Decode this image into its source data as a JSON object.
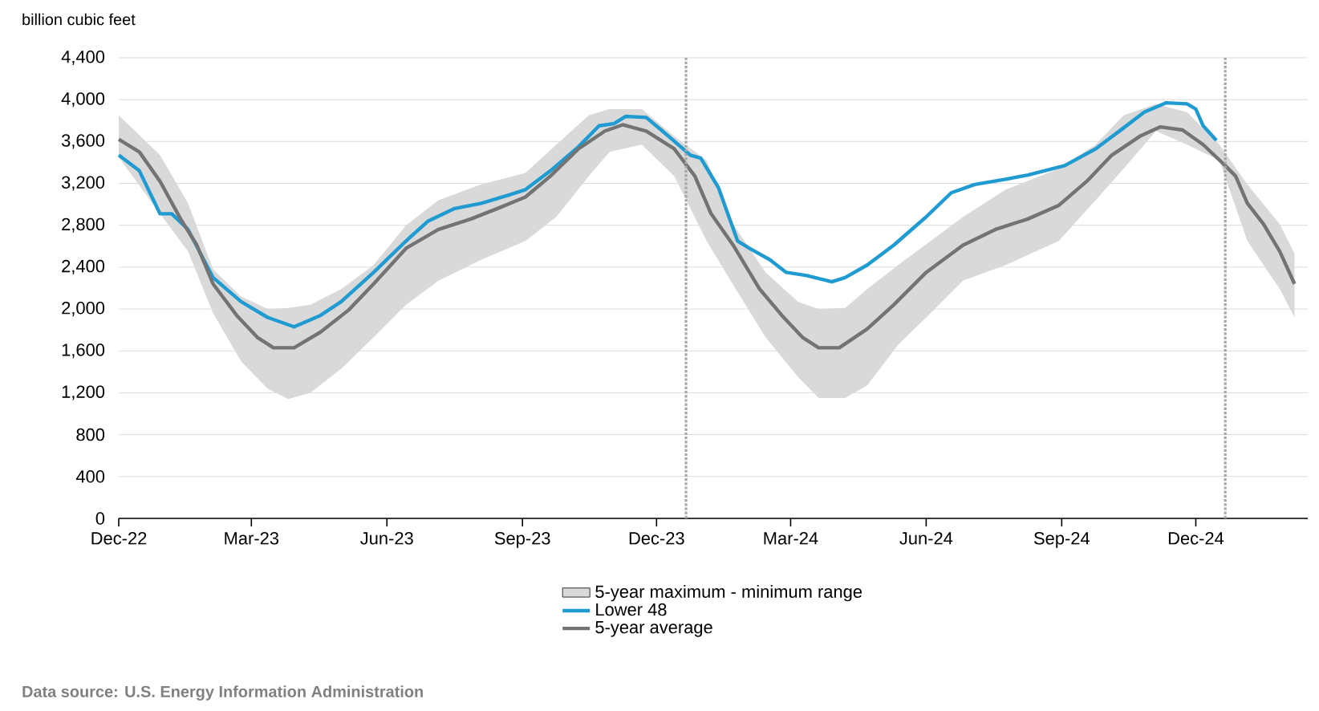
{
  "chart_data": {
    "type": "line",
    "ylabel": "billion cubic feet",
    "annotations": [
      "Data source: U.S. Energy Information Administration"
    ],
    "xlim": [
      "2022-12-01",
      "2025-02-15"
    ],
    "xticks": [
      {
        "value": "2022-12-01",
        "label": "Dec-22"
      },
      {
        "value": "2023-03-01",
        "label": "Mar-23"
      },
      {
        "value": "2023-06-01",
        "label": "Jun-23"
      },
      {
        "value": "2023-09-01",
        "label": "Sep-23"
      },
      {
        "value": "2023-12-01",
        "label": "Dec-23"
      },
      {
        "value": "2024-03-01",
        "label": "Mar-24"
      },
      {
        "value": "2024-06-01",
        "label": "Jun-24"
      },
      {
        "value": "2024-09-01",
        "label": "Sep-24"
      },
      {
        "value": "2024-12-01",
        "label": "Dec-24"
      }
    ],
    "ylim": [
      0,
      4400
    ],
    "yticks": [
      0,
      400,
      800,
      {
        "value": 1200,
        "label": "1,200"
      },
      {
        "value": 1600,
        "label": "1,600"
      },
      {
        "value": 2000,
        "label": "2,000"
      },
      {
        "value": 2400,
        "label": "2,400"
      },
      {
        "value": 2800,
        "label": "2,800"
      },
      {
        "value": 3200,
        "label": "3,200"
      },
      {
        "value": 3600,
        "label": "3,600"
      },
      {
        "value": 4000,
        "label": "4,000"
      },
      {
        "value": 4400,
        "label": "4,400"
      }
    ],
    "grid": "y",
    "legend": "bottom",
    "marker": "none",
    "ref_lines": [
      {
        "axis": "x",
        "value": "2023-12-21",
        "color": "#a6a6a6",
        "line_style": "dotted"
      },
      {
        "axis": "x",
        "value": "2024-12-21",
        "color": "#a6a6a6",
        "line_style": "dotted"
      }
    ],
    "series": [
      {
        "name": "5-year maximum - minimum range",
        "type": "area",
        "color": "#d9d9d9",
        "x": [
          "2022-12-01",
          "2022-12-29",
          "2023-01-17",
          "2023-02-03",
          "2023-02-22",
          "2023-03-12",
          "2023-03-26",
          "2023-04-10",
          "2023-05-01",
          "2023-05-23",
          "2023-06-14",
          "2023-07-06",
          "2023-08-04",
          "2023-09-03",
          "2023-09-24",
          "2023-10-16",
          "2023-10-30",
          "2023-11-21",
          "2023-12-13",
          "2024-01-04",
          "2024-01-22",
          "2024-02-13",
          "2024-03-06",
          "2024-03-20",
          "2024-04-07",
          "2024-04-22",
          "2024-05-13",
          "2024-06-04",
          "2024-06-26",
          "2024-07-25",
          "2024-08-30",
          "2024-09-24",
          "2024-10-13",
          "2024-11-04",
          "2024-11-25",
          "2024-12-17",
          "2025-01-05",
          "2025-01-27",
          "2025-02-06"
        ],
        "values": [
          null,
          null,
          null,
          null,
          null,
          null,
          null,
          null,
          null,
          null,
          null,
          null,
          null,
          null,
          null,
          null,
          null,
          null,
          null,
          null,
          null,
          null,
          null,
          null,
          null,
          null,
          null,
          null,
          null,
          null,
          null,
          null,
          null,
          null,
          null,
          null,
          null,
          null,
          null
        ],
        "upper": [
          3850,
          3470,
          3010,
          2380,
          2120,
          2000,
          2010,
          2040,
          2190,
          2420,
          2800,
          3040,
          3190,
          3300,
          3570,
          3850,
          3910,
          3910,
          3650,
          3420,
          2810,
          2350,
          2070,
          2000,
          2010,
          2190,
          2420,
          2650,
          2880,
          3140,
          3340,
          3570,
          3850,
          3960,
          3880,
          3570,
          3190,
          2810,
          2530
        ],
        "lower": [
          3450,
          2910,
          2550,
          1960,
          1500,
          1240,
          1140,
          1200,
          1430,
          1730,
          2040,
          2270,
          2470,
          2650,
          2880,
          3270,
          3500,
          3570,
          3270,
          2650,
          2230,
          1730,
          1350,
          1150,
          1150,
          1270,
          1660,
          1960,
          2270,
          2420,
          2650,
          3040,
          3340,
          3700,
          3570,
          3420,
          2650,
          2190,
          1920
        ]
      },
      {
        "name": "Lower 48",
        "color": "#1f9bd1",
        "x": [
          "2022-12-01",
          "2022-12-15",
          "2022-12-29",
          "2023-01-06",
          "2023-01-17",
          "2023-02-03",
          "2023-02-22",
          "2023-03-12",
          "2023-03-30",
          "2023-04-17",
          "2023-05-01",
          "2023-05-23",
          "2023-06-14",
          "2023-06-29",
          "2023-07-17",
          "2023-08-04",
          "2023-08-23",
          "2023-09-03",
          "2023-09-20",
          "2023-10-09",
          "2023-10-23",
          "2023-11-02",
          "2023-11-10",
          "2023-11-24",
          "2023-12-05",
          "2023-12-24",
          "2023-12-31",
          "2024-01-12",
          "2024-01-25",
          "2024-02-02",
          "2024-02-16",
          "2024-02-27",
          "2024-03-12",
          "2024-03-29",
          "2024-04-07",
          "2024-04-22",
          "2024-05-10",
          "2024-06-01",
          "2024-06-18",
          "2024-07-04",
          "2024-07-25",
          "2024-08-09",
          "2024-09-03",
          "2024-09-24",
          "2024-10-13",
          "2024-10-27",
          "2024-11-11",
          "2024-11-25",
          "2024-12-01",
          "2024-12-06",
          "2024-12-15"
        ],
        "values": [
          3470,
          3320,
          2910,
          2910,
          2760,
          2300,
          2070,
          1920,
          1830,
          1940,
          2070,
          2350,
          2650,
          2840,
          2960,
          3010,
          3090,
          3140,
          3320,
          3550,
          3750,
          3770,
          3840,
          3830,
          3700,
          3470,
          3440,
          3160,
          2650,
          2580,
          2470,
          2350,
          2320,
          2260,
          2300,
          2420,
          2610,
          2880,
          3110,
          3190,
          3240,
          3280,
          3370,
          3530,
          3730,
          3880,
          3970,
          3960,
          3910,
          3750,
          3610
        ]
      },
      {
        "name": "5-year average",
        "color": "#737373",
        "x": [
          "2022-12-01",
          "2022-12-15",
          "2022-12-29",
          "2023-01-12",
          "2023-01-23",
          "2023-02-03",
          "2023-02-19",
          "2023-03-05",
          "2023-03-16",
          "2023-03-30",
          "2023-04-17",
          "2023-05-06",
          "2023-05-23",
          "2023-06-14",
          "2023-07-06",
          "2023-07-28",
          "2023-08-15",
          "2023-09-03",
          "2023-09-20",
          "2023-10-09",
          "2023-10-27",
          "2023-11-08",
          "2023-11-24",
          "2023-12-13",
          "2023-12-27",
          "2024-01-07",
          "2024-01-22",
          "2024-02-09",
          "2024-02-24",
          "2024-03-09",
          "2024-03-20",
          "2024-04-03",
          "2024-04-22",
          "2024-05-10",
          "2024-06-01",
          "2024-06-26",
          "2024-07-18",
          "2024-08-09",
          "2024-08-30",
          "2024-09-18",
          "2024-10-05",
          "2024-10-24",
          "2024-11-07",
          "2024-11-22",
          "2024-12-06",
          "2024-12-21",
          "2024-12-28",
          "2025-01-05",
          "2025-01-16",
          "2025-01-27",
          "2025-02-06"
        ],
        "values": [
          3620,
          3500,
          3220,
          2860,
          2610,
          2240,
          1940,
          1730,
          1630,
          1630,
          1780,
          1990,
          2240,
          2580,
          2760,
          2860,
          2960,
          3070,
          3270,
          3530,
          3700,
          3760,
          3700,
          3530,
          3270,
          2910,
          2610,
          2190,
          1940,
          1730,
          1630,
          1630,
          1810,
          2040,
          2350,
          2610,
          2760,
          2860,
          2990,
          3220,
          3470,
          3650,
          3740,
          3710,
          3570,
          3370,
          3270,
          3010,
          2810,
          2550,
          2240
        ]
      }
    ]
  }
}
